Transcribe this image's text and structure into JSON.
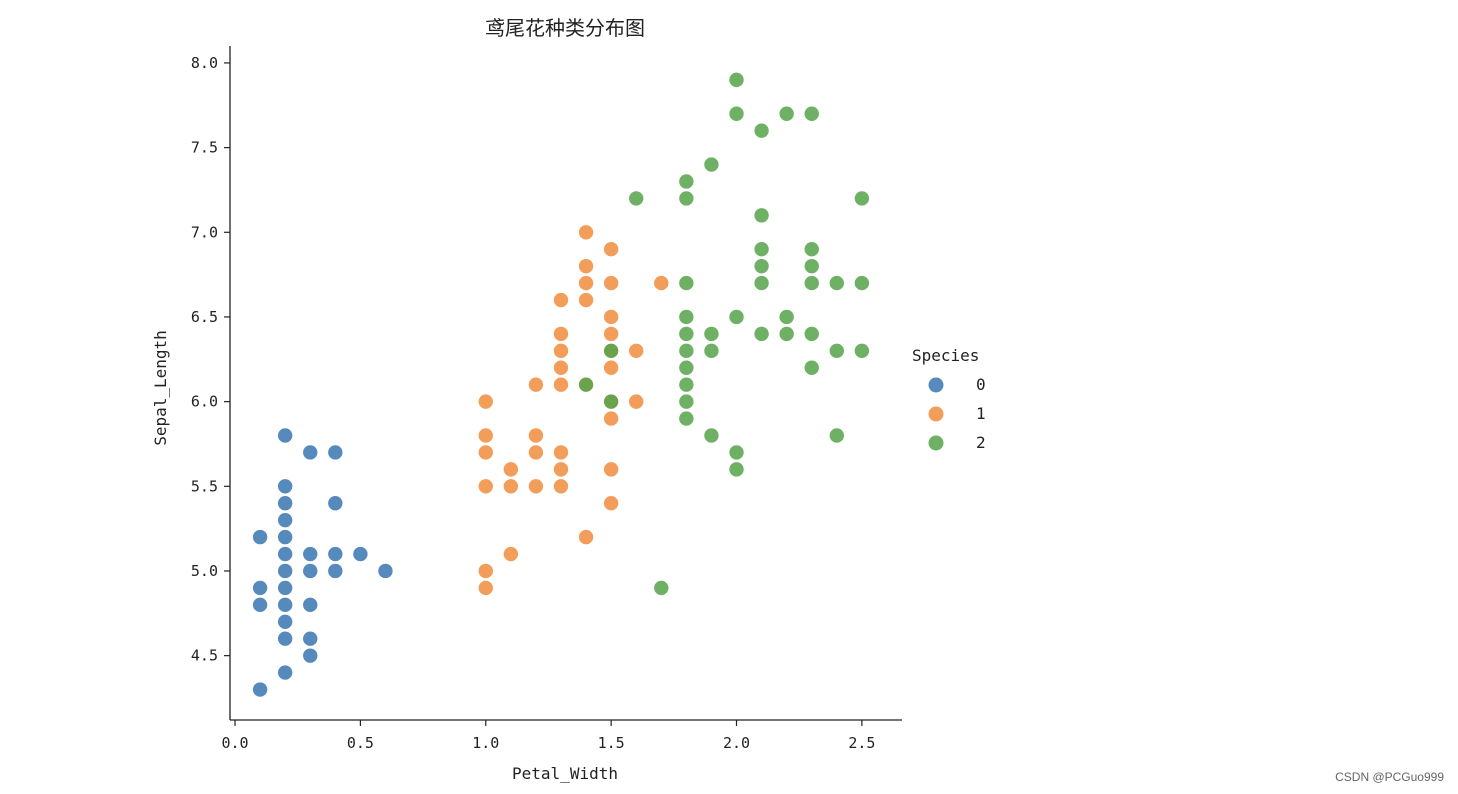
{
  "watermark": "CSDN @PCGuo999",
  "chart_data": {
    "type": "scatter",
    "title": "鸢尾花种类分布图",
    "xlabel": "Petal_Width",
    "ylabel": "Sepal_Length",
    "xlim": [
      -0.02,
      2.66
    ],
    "ylim": [
      4.12,
      8.1
    ],
    "xticks": [
      0.0,
      0.5,
      1.0,
      1.5,
      2.0,
      2.5
    ],
    "xtick_labels": [
      "0.0",
      "0.5",
      "1.0",
      "1.5",
      "2.0",
      "2.5"
    ],
    "yticks": [
      4.5,
      5.0,
      5.5,
      6.0,
      6.5,
      7.0,
      7.5,
      8.0
    ],
    "ytick_labels": [
      "4.5",
      "5.0",
      "5.5",
      "6.0",
      "6.5",
      "7.0",
      "7.5",
      "8.0"
    ],
    "legend": {
      "title": "Species",
      "position": "right"
    },
    "grid": false,
    "series": [
      {
        "name": "0",
        "color": "#3a76b0",
        "points": [
          [
            0.1,
            4.3
          ],
          [
            0.1,
            4.8
          ],
          [
            0.1,
            4.9
          ],
          [
            0.1,
            5.2
          ],
          [
            0.2,
            4.4
          ],
          [
            0.2,
            4.6
          ],
          [
            0.2,
            4.7
          ],
          [
            0.2,
            4.8
          ],
          [
            0.2,
            4.9
          ],
          [
            0.2,
            5.0
          ],
          [
            0.2,
            5.1
          ],
          [
            0.2,
            5.2
          ],
          [
            0.2,
            5.3
          ],
          [
            0.2,
            5.4
          ],
          [
            0.2,
            5.5
          ],
          [
            0.2,
            5.8
          ],
          [
            0.3,
            4.5
          ],
          [
            0.3,
            4.6
          ],
          [
            0.3,
            4.8
          ],
          [
            0.3,
            5.0
          ],
          [
            0.3,
            5.1
          ],
          [
            0.3,
            5.7
          ],
          [
            0.4,
            5.0
          ],
          [
            0.4,
            5.1
          ],
          [
            0.4,
            5.4
          ],
          [
            0.4,
            5.7
          ],
          [
            0.5,
            5.1
          ],
          [
            0.6,
            5.0
          ]
        ]
      },
      {
        "name": "1",
        "color": "#f08c3c",
        "points": [
          [
            1.0,
            4.9
          ],
          [
            1.0,
            5.0
          ],
          [
            1.0,
            5.5
          ],
          [
            1.0,
            5.7
          ],
          [
            1.0,
            5.8
          ],
          [
            1.0,
            6.0
          ],
          [
            1.1,
            5.1
          ],
          [
            1.1,
            5.5
          ],
          [
            1.1,
            5.6
          ],
          [
            1.2,
            5.5
          ],
          [
            1.2,
            5.7
          ],
          [
            1.2,
            5.8
          ],
          [
            1.2,
            6.1
          ],
          [
            1.3,
            5.5
          ],
          [
            1.3,
            5.6
          ],
          [
            1.3,
            5.7
          ],
          [
            1.3,
            6.1
          ],
          [
            1.3,
            6.2
          ],
          [
            1.3,
            6.3
          ],
          [
            1.3,
            6.4
          ],
          [
            1.3,
            6.6
          ],
          [
            1.4,
            5.2
          ],
          [
            1.4,
            6.1
          ],
          [
            1.4,
            6.6
          ],
          [
            1.4,
            6.7
          ],
          [
            1.4,
            6.8
          ],
          [
            1.4,
            7.0
          ],
          [
            1.5,
            5.4
          ],
          [
            1.5,
            5.6
          ],
          [
            1.5,
            5.9
          ],
          [
            1.5,
            6.0
          ],
          [
            1.5,
            6.2
          ],
          [
            1.5,
            6.3
          ],
          [
            1.5,
            6.4
          ],
          [
            1.5,
            6.5
          ],
          [
            1.5,
            6.7
          ],
          [
            1.5,
            6.9
          ],
          [
            1.6,
            6.0
          ],
          [
            1.6,
            6.3
          ],
          [
            1.7,
            6.7
          ]
        ]
      },
      {
        "name": "2",
        "color": "#55a34a",
        "points": [
          [
            1.4,
            6.1
          ],
          [
            1.5,
            6.0
          ],
          [
            1.5,
            6.3
          ],
          [
            1.6,
            7.2
          ],
          [
            1.7,
            4.9
          ],
          [
            1.8,
            5.9
          ],
          [
            1.8,
            6.0
          ],
          [
            1.8,
            6.1
          ],
          [
            1.8,
            6.2
          ],
          [
            1.8,
            6.3
          ],
          [
            1.8,
            6.4
          ],
          [
            1.8,
            6.5
          ],
          [
            1.8,
            6.7
          ],
          [
            1.8,
            7.2
          ],
          [
            1.8,
            7.3
          ],
          [
            1.9,
            5.8
          ],
          [
            1.9,
            6.3
          ],
          [
            1.9,
            6.4
          ],
          [
            1.9,
            7.4
          ],
          [
            2.0,
            5.6
          ],
          [
            2.0,
            5.7
          ],
          [
            2.0,
            6.5
          ],
          [
            2.0,
            7.7
          ],
          [
            2.0,
            7.9
          ],
          [
            2.1,
            6.4
          ],
          [
            2.1,
            6.7
          ],
          [
            2.1,
            6.8
          ],
          [
            2.1,
            6.9
          ],
          [
            2.1,
            7.1
          ],
          [
            2.1,
            7.6
          ],
          [
            2.2,
            6.4
          ],
          [
            2.2,
            6.5
          ],
          [
            2.2,
            7.7
          ],
          [
            2.3,
            6.2
          ],
          [
            2.3,
            6.4
          ],
          [
            2.3,
            6.7
          ],
          [
            2.3,
            6.8
          ],
          [
            2.3,
            6.9
          ],
          [
            2.3,
            7.7
          ],
          [
            2.4,
            5.8
          ],
          [
            2.4,
            6.3
          ],
          [
            2.4,
            6.7
          ],
          [
            2.5,
            6.3
          ],
          [
            2.5,
            6.7
          ],
          [
            2.5,
            7.2
          ]
        ]
      }
    ]
  }
}
